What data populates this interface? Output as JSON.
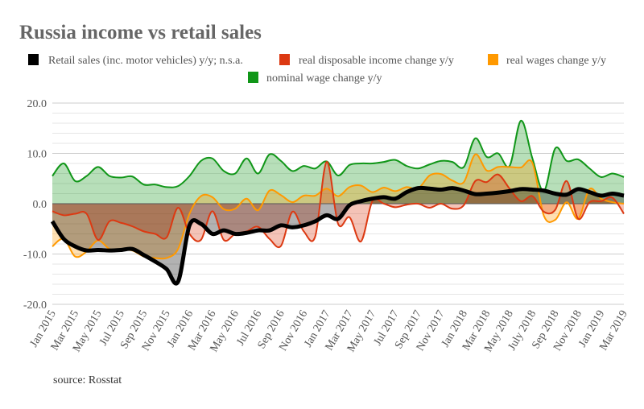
{
  "chart_data": {
    "type": "area",
    "title": "Russia income vs retail sales",
    "source": "source: Rosstat",
    "ylim": [
      -20,
      20
    ],
    "yticks": [
      20,
      10,
      0,
      -10,
      -20
    ],
    "ytick_labels": [
      "20.0",
      "10.0",
      "0.0",
      "-10.0",
      "-20.0"
    ],
    "minor_grid_step": 2,
    "grid": true,
    "legend_position": "top",
    "x": [
      "Jan 2015",
      "Feb 2015",
      "Mar 2015",
      "Apr 2015",
      "May 2015",
      "Jun 2015",
      "Jul 2015",
      "Aug 2015",
      "Sep 2015",
      "Oct 2015",
      "Nov 2015",
      "Dec 2015",
      "Jan 2016",
      "Feb 2016",
      "Mar 2016",
      "Apr 2016",
      "May 2016",
      "Jun 2016",
      "Jul 2016",
      "Aug 2016",
      "Sep 2016",
      "Oct 2016",
      "Nov 2016",
      "Dec 2016",
      "Jan 2017",
      "Feb 2017",
      "Mar 2017",
      "Apr 2017",
      "May 2017",
      "Jun 2017",
      "Jul 2017",
      "Aug 2017",
      "Sep 2017",
      "Oct 2017",
      "Nov 2017",
      "Dec 2017",
      "Jan 2018",
      "Feb 2018",
      "Mar 2018",
      "Apr 2018",
      "May 2018",
      "Jun 2018",
      "Jul 2018",
      "Aug 2018",
      "Sep 2018",
      "Oct 2018",
      "Nov 2018",
      "Dec 2018",
      "Jan 2019",
      "Feb 2019",
      "Mar 2019"
    ],
    "xtick_labels": [
      "Jan 2015",
      "Mar 2015",
      "May 2015",
      "Jul 2015",
      "Sep 2015",
      "Nov 2015",
      "Jan 2016",
      "Mar 2016",
      "May 2016",
      "Jul 2016",
      "Sep 2016",
      "Nov 2016",
      "Jan 2017",
      "Mar 2017",
      "May 2017",
      "Jul 2017",
      "Sep 2017",
      "Nov 2017",
      "Jan 2018",
      "Mar 2018",
      "May 2018",
      "July 2018",
      "Sep 2018",
      "Nov 2018",
      "Jan 2019",
      "Mar 2019"
    ],
    "series": [
      {
        "name": "nominal wage change y/y",
        "color": "#109618",
        "values": [
          5.5,
          8,
          4.5,
          5.5,
          7.3,
          5.5,
          5.2,
          5.4,
          3.8,
          3.8,
          3.3,
          3.5,
          5.5,
          8.5,
          9,
          6.5,
          6,
          9,
          6,
          9.8,
          8.5,
          6.5,
          7.5,
          7,
          8.4,
          5.6,
          7.7,
          8,
          8,
          8.3,
          8.7,
          7.5,
          7,
          7.8,
          8.5,
          8.3,
          7.3,
          13,
          9.3,
          10,
          7.5,
          16.5,
          9,
          2.5,
          11,
          8.5,
          8.8,
          7,
          5.3,
          6,
          5.3
        ]
      },
      {
        "name": "real wages change y/y",
        "color": "#ff9900",
        "values": [
          -8.5,
          -7,
          -10.5,
          -9.5,
          -7.3,
          -9,
          -9.2,
          -9.3,
          -10.5,
          -10.8,
          -10.8,
          -9,
          -2,
          1.5,
          1.3,
          -1.1,
          -1,
          1,
          -1.3,
          2.6,
          1.7,
          0.3,
          1.6,
          1.6,
          3,
          1.5,
          3.3,
          3.6,
          2.3,
          3.2,
          2.5,
          3.3,
          3,
          5.6,
          5.9,
          4.6,
          4.3,
          9.8,
          6.6,
          7.3,
          7.3,
          7.2,
          8.1,
          -2.4,
          -3.2,
          0.3,
          -3,
          2.9,
          1,
          0.3,
          0
        ]
      },
      {
        "name": "real disposable income change y/y",
        "color": "#dc3912",
        "values": [
          -1.5,
          -2.3,
          -2,
          -2,
          -7.2,
          -3.5,
          -3.8,
          -4.5,
          -5.5,
          -6,
          -6.7,
          -0.8,
          -6,
          -7.2,
          -1.5,
          -7.2,
          -6,
          -5.5,
          -4.6,
          -7,
          -8.4,
          -1.6,
          -5.5,
          -6.5,
          8.3,
          -4,
          -2.7,
          -7.5,
          0.5,
          0,
          -0.7,
          -0.2,
          0,
          -0.8,
          0,
          -1,
          -0.3,
          4.5,
          4.3,
          5.8,
          3,
          0.5,
          1.5,
          -1.6,
          -1.2,
          4.5,
          -3,
          0.3,
          0.5,
          1.2,
          -2
        ]
      },
      {
        "name": "Retail sales (inc. motor vehicles) y/y; n.s.a.",
        "color": "#000000",
        "values": [
          -3.5,
          -7,
          -8.5,
          -9.3,
          -9.2,
          -9.3,
          -9.2,
          -9,
          -10.2,
          -11.5,
          -13,
          -15.5,
          -4.3,
          -4,
          -6,
          -5.3,
          -6,
          -5.8,
          -5.3,
          -5.3,
          -4.3,
          -4.7,
          -4.3,
          -3.5,
          -2.3,
          -3,
          -0.3,
          0.5,
          1,
          1.3,
          1,
          2.3,
          3.1,
          3,
          2.8,
          3.1,
          2.6,
          1.9,
          2,
          2.2,
          2.5,
          2.9,
          2.8,
          2.6,
          2,
          1.8,
          2.9,
          2.3,
          1.6,
          2,
          1.6
        ]
      }
    ],
    "legend": [
      {
        "label": "Retail sales (inc. motor vehicles) y/y; n.s.a.",
        "color": "#000000"
      },
      {
        "label": "real disposable income change y/y",
        "color": "#dc3912"
      },
      {
        "label": "real wages change y/y",
        "color": "#ff9900"
      },
      {
        "label": "nominal wage change y/y",
        "color": "#109618"
      }
    ]
  }
}
